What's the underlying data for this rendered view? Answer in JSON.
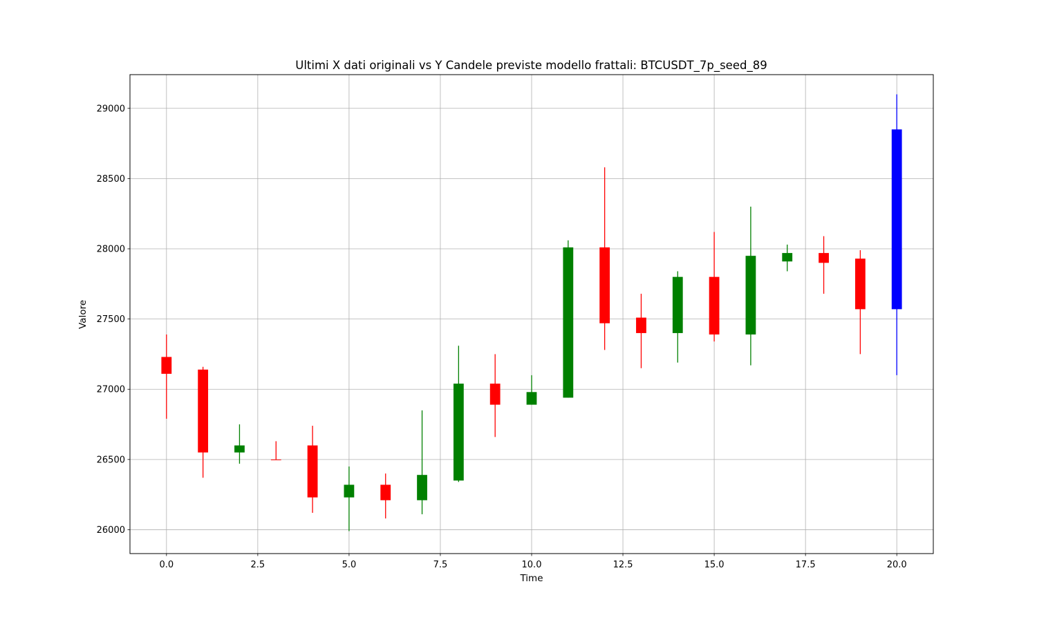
{
  "chart_data": {
    "type": "candlestick",
    "title": "Ultimi X dati originali vs Y Candele previste modello frattali: BTCUSDT_7p_seed_89",
    "xlabel": "Time",
    "ylabel": "Valore",
    "xlim": [
      -1,
      21
    ],
    "ylim": [
      25830,
      29240
    ],
    "xticks": [
      0.0,
      2.5,
      5.0,
      7.5,
      10.0,
      12.5,
      15.0,
      17.5,
      20.0
    ],
    "xtick_labels": [
      "0.0",
      "2.5",
      "5.0",
      "7.5",
      "10.0",
      "12.5",
      "15.0",
      "17.5",
      "20.0"
    ],
    "yticks": [
      26000,
      26500,
      27000,
      27500,
      28000,
      28500,
      29000
    ],
    "ytick_labels": [
      "26000",
      "26500",
      "27000",
      "27500",
      "28000",
      "28500",
      "29000"
    ],
    "grid": true,
    "colors": {
      "up": "#008000",
      "down": "#ff0000",
      "predicted": "#0000ff"
    },
    "candles": [
      {
        "x": 0,
        "open": 27230,
        "high": 27390,
        "low": 26790,
        "close": 27110,
        "color": "down"
      },
      {
        "x": 1,
        "open": 27140,
        "high": 27160,
        "low": 26370,
        "close": 26550,
        "color": "down"
      },
      {
        "x": 2,
        "open": 26550,
        "high": 26750,
        "low": 26470,
        "close": 26600,
        "color": "up"
      },
      {
        "x": 3,
        "open": 26500,
        "high": 26630,
        "low": 26500,
        "close": 26500,
        "color": "down"
      },
      {
        "x": 4,
        "open": 26600,
        "high": 26740,
        "low": 26120,
        "close": 26230,
        "color": "down"
      },
      {
        "x": 5,
        "open": 26230,
        "high": 26450,
        "low": 25990,
        "close": 26320,
        "color": "up"
      },
      {
        "x": 6,
        "open": 26320,
        "high": 26400,
        "low": 26080,
        "close": 26210,
        "color": "down"
      },
      {
        "x": 7,
        "open": 26210,
        "high": 26850,
        "low": 26110,
        "close": 26390,
        "color": "up"
      },
      {
        "x": 8,
        "open": 26350,
        "high": 27310,
        "low": 26340,
        "close": 27040,
        "color": "up"
      },
      {
        "x": 9,
        "open": 27040,
        "high": 27250,
        "low": 26660,
        "close": 26890,
        "color": "down"
      },
      {
        "x": 10,
        "open": 26890,
        "high": 27100,
        "low": 26890,
        "close": 26980,
        "color": "up"
      },
      {
        "x": 11,
        "open": 26940,
        "high": 28060,
        "low": 26940,
        "close": 28010,
        "color": "up"
      },
      {
        "x": 12,
        "open": 28010,
        "high": 28580,
        "low": 27280,
        "close": 27470,
        "color": "down"
      },
      {
        "x": 13,
        "open": 27510,
        "high": 27680,
        "low": 27150,
        "close": 27400,
        "color": "down"
      },
      {
        "x": 14,
        "open": 27400,
        "high": 27840,
        "low": 27190,
        "close": 27800,
        "color": "up"
      },
      {
        "x": 15,
        "open": 27800,
        "high": 28120,
        "low": 27340,
        "close": 27390,
        "color": "down"
      },
      {
        "x": 16,
        "open": 27390,
        "high": 28300,
        "low": 27170,
        "close": 27950,
        "color": "up"
      },
      {
        "x": 17,
        "open": 27910,
        "high": 28030,
        "low": 27840,
        "close": 27970,
        "color": "up"
      },
      {
        "x": 18,
        "open": 27970,
        "high": 28090,
        "low": 27680,
        "close": 27900,
        "color": "down"
      },
      {
        "x": 19,
        "open": 27930,
        "high": 27990,
        "low": 27250,
        "close": 27570,
        "color": "down"
      },
      {
        "x": 20,
        "open": 27570,
        "high": 29100,
        "low": 27100,
        "close": 28850,
        "color": "predicted"
      }
    ]
  }
}
